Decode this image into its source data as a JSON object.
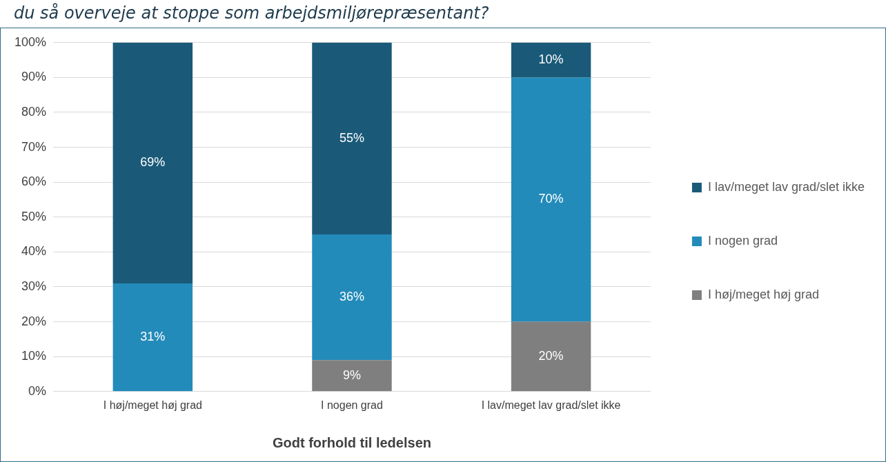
{
  "chart_data": {
    "type": "bar",
    "stacked": true,
    "title": "du så overveje at stoppe som arbejdsmiljørepræsentant?",
    "xlabel": "Godt forhold til ledelsen",
    "categories": [
      "I høj/meget høj grad",
      "I nogen grad",
      "I lav/meget lav grad/slet ikke"
    ],
    "series": [
      {
        "name": "I høj/meget høj grad",
        "color": "#7f7f7f",
        "values": [
          0,
          9,
          20
        ],
        "value_labels": [
          null,
          "9%",
          "20%"
        ]
      },
      {
        "name": "I nogen grad",
        "color": "#238bba",
        "values": [
          31,
          36,
          70
        ],
        "value_labels": [
          "31%",
          "36%",
          "70%"
        ]
      },
      {
        "name": "I lav/meget lav grad/slet ikke",
        "color": "#1a5a78",
        "values": [
          69,
          55,
          10
        ],
        "value_labels": [
          "69%",
          "55%",
          "10%"
        ]
      }
    ],
    "ylim": [
      0,
      100
    ],
    "yticks": [
      {
        "value": 0,
        "label": "0%"
      },
      {
        "value": 10,
        "label": "10%"
      },
      {
        "value": 20,
        "label": "20%"
      },
      {
        "value": 30,
        "label": "30%"
      },
      {
        "value": 40,
        "label": "40%"
      },
      {
        "value": 50,
        "label": "50%"
      },
      {
        "value": 60,
        "label": "60%"
      },
      {
        "value": 70,
        "label": "70%"
      },
      {
        "value": 80,
        "label": "80%"
      },
      {
        "value": 90,
        "label": "90%"
      },
      {
        "value": 100,
        "label": "100%"
      }
    ],
    "grid": "y",
    "legend": "right"
  }
}
